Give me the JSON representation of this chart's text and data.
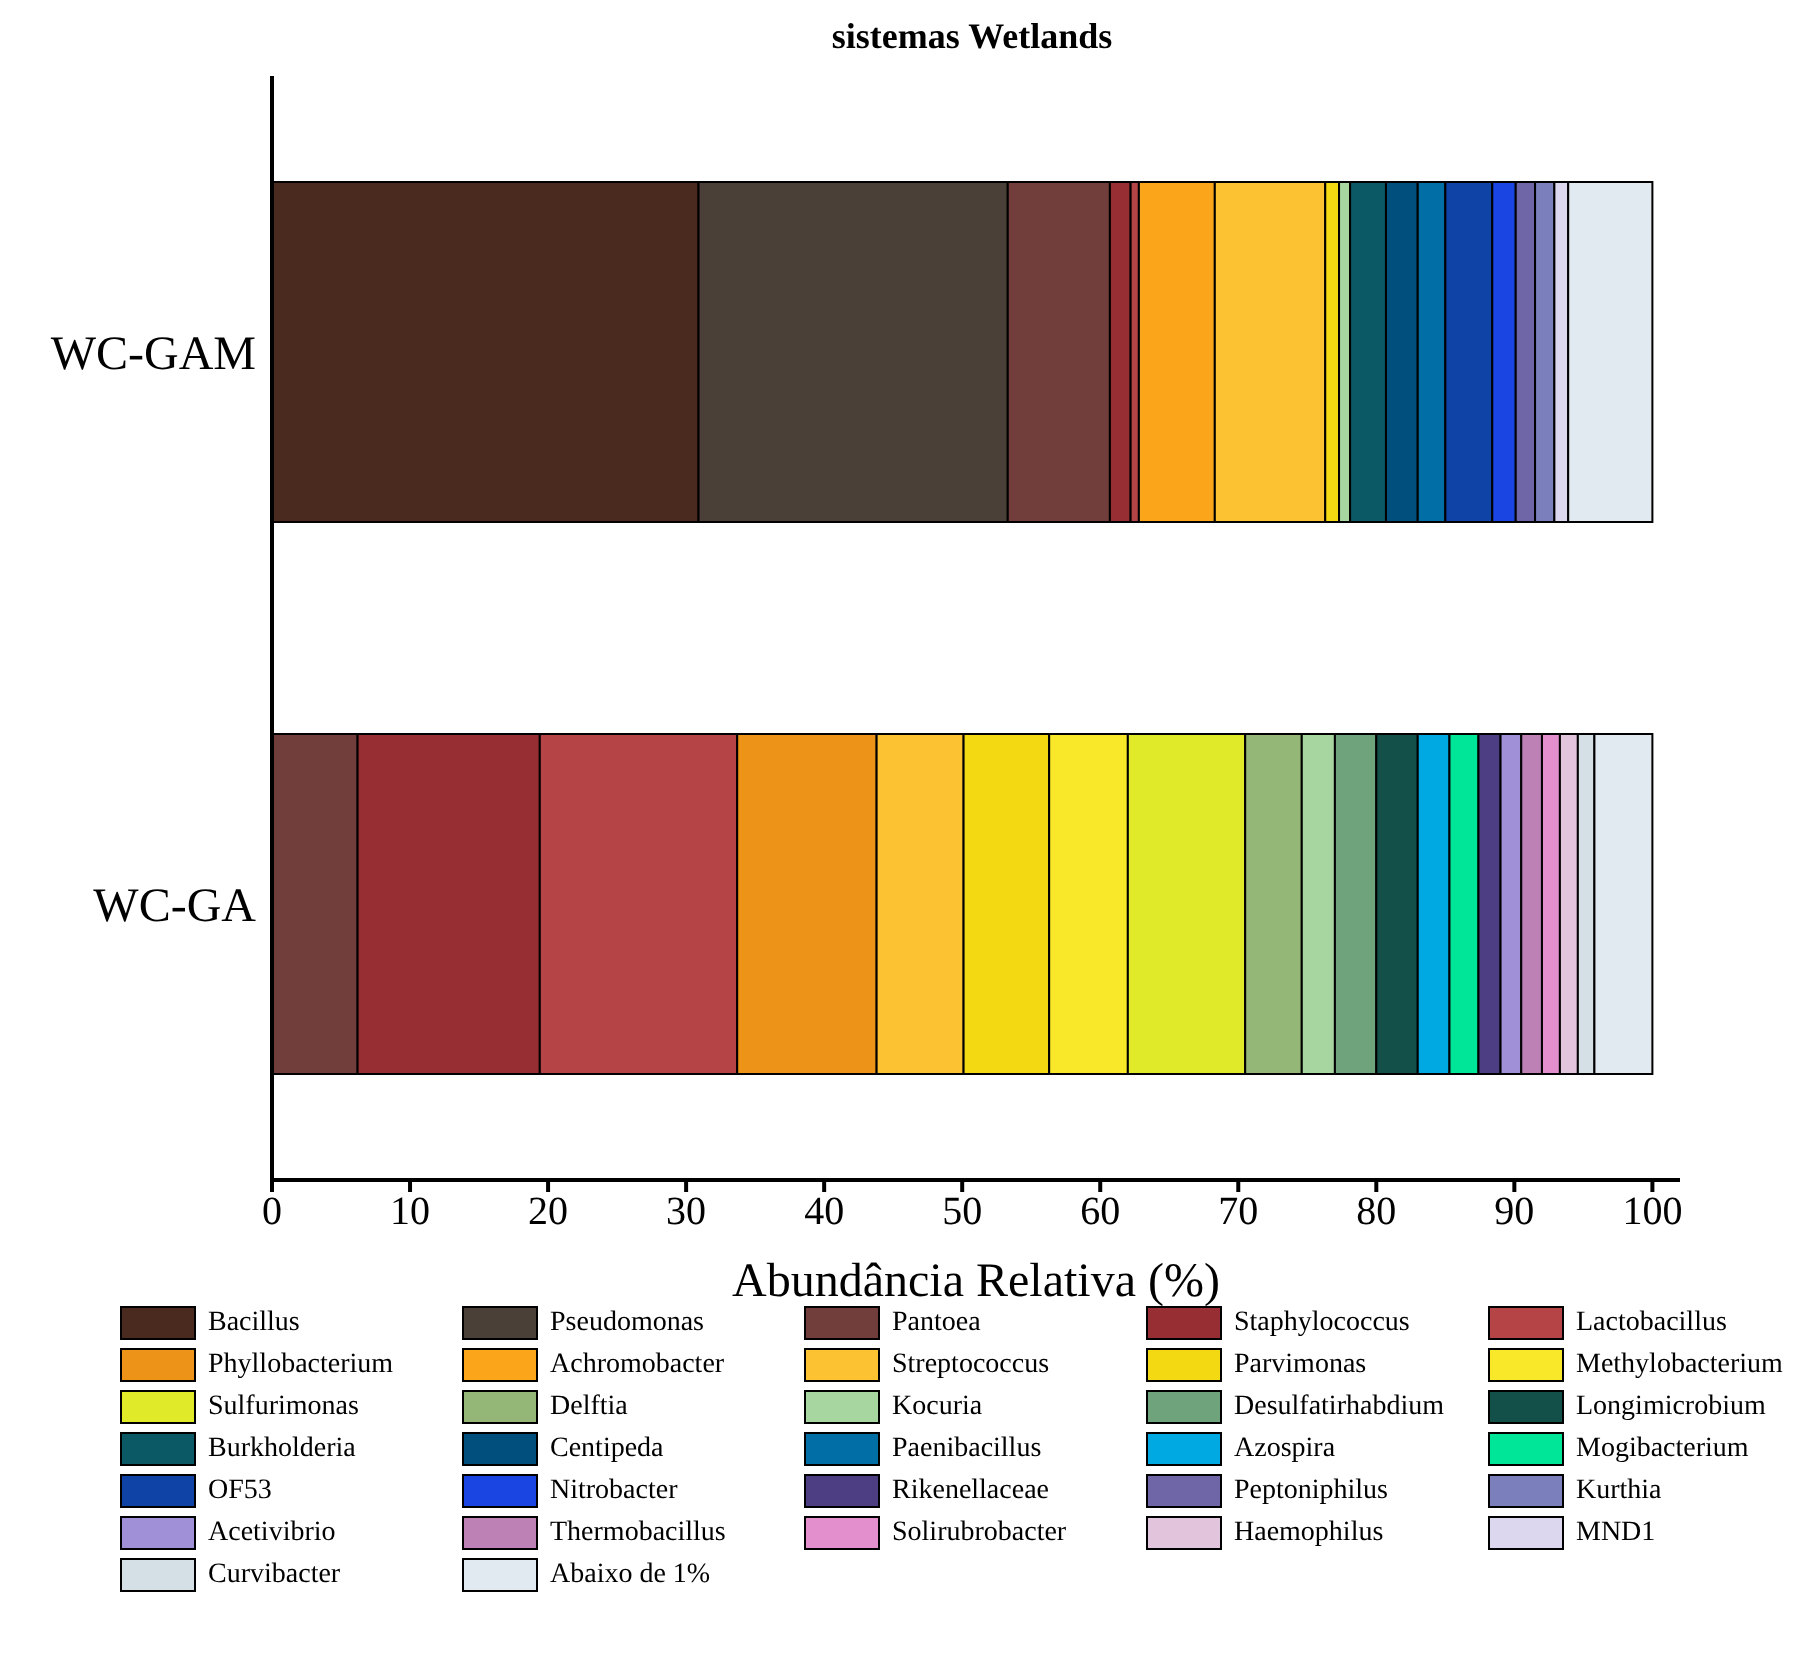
{
  "chart_data": {
    "type": "bar",
    "title": "sistemas Wetlands",
    "orientation": "horizontal",
    "stacked": true,
    "legend": "bottom",
    "xlabel": "Abundância Relativa (%)",
    "categories": [
      "WC-GAM",
      "WC-GA"
    ],
    "xlim": [
      0,
      102
    ],
    "xticks": [
      0,
      10,
      20,
      30,
      40,
      50,
      60,
      70,
      80,
      90,
      100
    ],
    "series": [
      {
        "name": "Bacillus",
        "color": "#4a2a1f",
        "values": [
          30.9,
          null
        ]
      },
      {
        "name": "Pseudomonas",
        "color": "#4a4037",
        "values": [
          22.4,
          null
        ]
      },
      {
        "name": "Pantoea",
        "color": "#723e3c",
        "values": [
          7.4,
          6.2
        ]
      },
      {
        "name": "Staphylococcus",
        "color": "#962e34",
        "values": [
          1.5,
          13.2
        ]
      },
      {
        "name": "Lactobacillus",
        "color": "#b54446",
        "values": [
          0.6,
          14.3
        ]
      },
      {
        "name": "Phyllobacterium",
        "color": "#ec9318",
        "values": [
          null,
          10.1
        ]
      },
      {
        "name": "Achromobacter",
        "color": "#fba61a",
        "values": [
          5.5,
          null
        ]
      },
      {
        "name": "Streptococcus",
        "color": "#fdc232",
        "values": [
          8.0,
          6.3
        ]
      },
      {
        "name": "Parvimonas",
        "color": "#f2d912",
        "values": [
          1.0,
          6.2
        ]
      },
      {
        "name": "Methylobacterium",
        "color": "#f9e72a",
        "values": [
          null,
          5.7
        ]
      },
      {
        "name": "Sulfurimonas",
        "color": "#e0ea28",
        "values": [
          null,
          8.5
        ]
      },
      {
        "name": "Delftia",
        "color": "#94b778",
        "values": [
          null,
          4.1
        ]
      },
      {
        "name": "Kocuria",
        "color": "#a8d6a0",
        "values": [
          0.8,
          2.4
        ]
      },
      {
        "name": "Desulfatirhabdium",
        "color": "#6fa37b",
        "values": [
          null,
          3.0
        ]
      },
      {
        "name": "Longimicrobium",
        "color": "#13504a",
        "values": [
          null,
          3.0
        ]
      },
      {
        "name": "Burkholderia",
        "color": "#0b5964",
        "values": [
          2.6,
          null
        ]
      },
      {
        "name": "Centipeda",
        "color": "#004f7c",
        "values": [
          2.3,
          null
        ]
      },
      {
        "name": "Paenibacillus",
        "color": "#026ea6",
        "values": [
          2.0,
          null
        ]
      },
      {
        "name": "Azospira",
        "color": "#00a9e1",
        "values": [
          null,
          2.3
        ]
      },
      {
        "name": "Mogibacterium",
        "color": "#00e699",
        "values": [
          null,
          2.1
        ]
      },
      {
        "name": "OF53",
        "color": "#0f43a5",
        "values": [
          3.4,
          null
        ]
      },
      {
        "name": "Nitrobacter",
        "color": "#1b45e2",
        "values": [
          1.7,
          null
        ]
      },
      {
        "name": "Rikenellaceae",
        "color": "#4d3d82",
        "values": [
          null,
          1.6
        ]
      },
      {
        "name": "Peptoniphilus",
        "color": "#6f66a8",
        "values": [
          1.4,
          null
        ]
      },
      {
        "name": "Kurthia",
        "color": "#7b7fbb",
        "values": [
          1.4,
          null
        ]
      },
      {
        "name": "Acetivibrio",
        "color": "#9f90d8",
        "values": [
          null,
          1.5
        ]
      },
      {
        "name": "Thermobacillus",
        "color": "#bd81b5",
        "values": [
          null,
          1.5
        ]
      },
      {
        "name": "Solirubrobacter",
        "color": "#e38fcd",
        "values": [
          null,
          1.3
        ]
      },
      {
        "name": "Haemophilus",
        "color": "#e2c4dc",
        "values": [
          null,
          1.3
        ]
      },
      {
        "name": "MND1",
        "color": "#ddd6ef",
        "values": [
          1.0,
          null
        ]
      },
      {
        "name": "Curvibacter",
        "color": "#d4e0e6",
        "values": [
          null,
          1.2
        ]
      },
      {
        "name": "Abaixo de 1%",
        "color": "#e2eaf1",
        "values": [
          6.1,
          4.2
        ]
      }
    ]
  }
}
